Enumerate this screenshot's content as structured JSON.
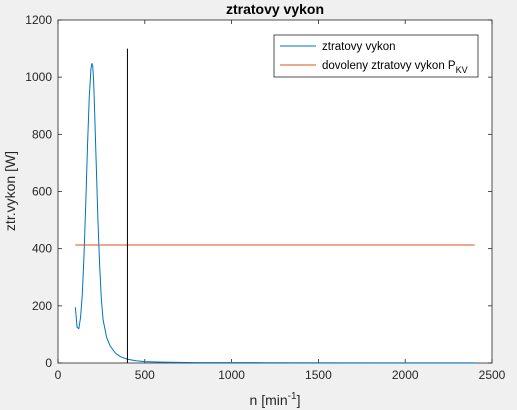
{
  "chart_data": {
    "type": "line",
    "title": "ztratovy vykon",
    "xlabel": "n [min",
    "xlabel_sup": "-1",
    "xlabel_suffix": "]",
    "ylabel": "ztr.vykon [W]",
    "xlim": [
      0,
      2500
    ],
    "ylim": [
      0,
      1200
    ],
    "xticks": [
      0,
      500,
      1000,
      1500,
      2000,
      2500
    ],
    "yticks": [
      0,
      200,
      400,
      600,
      800,
      1000,
      1200
    ],
    "grid": false,
    "legend_position": "top-right",
    "colors": {
      "series1": "#0072bd",
      "series2": "#d95319",
      "vline": "#000000"
    },
    "series": [
      {
        "name": "ztratovy vykon",
        "x": [
          100,
          110,
          120,
          130,
          140,
          150,
          160,
          170,
          180,
          190,
          195,
          200,
          205,
          210,
          220,
          230,
          240,
          250,
          260,
          280,
          300,
          330,
          360,
          400,
          450,
          500,
          600,
          800,
          1200,
          1800,
          2400
        ],
        "y": [
          195,
          125,
          120,
          160,
          240,
          380,
          560,
          760,
          930,
          1030,
          1048,
          1040,
          990,
          900,
          700,
          500,
          340,
          220,
          150,
          90,
          60,
          35,
          22,
          13,
          8,
          5,
          3,
          1.5,
          1,
          0.5,
          0.3
        ]
      },
      {
        "name": "dovoleny ztratovy vykon P",
        "name_sub": "KV",
        "x": [
          100,
          2400
        ],
        "y": [
          413,
          413
        ]
      }
    ],
    "vline": {
      "x": 400,
      "y": [
        0,
        1100
      ]
    }
  }
}
